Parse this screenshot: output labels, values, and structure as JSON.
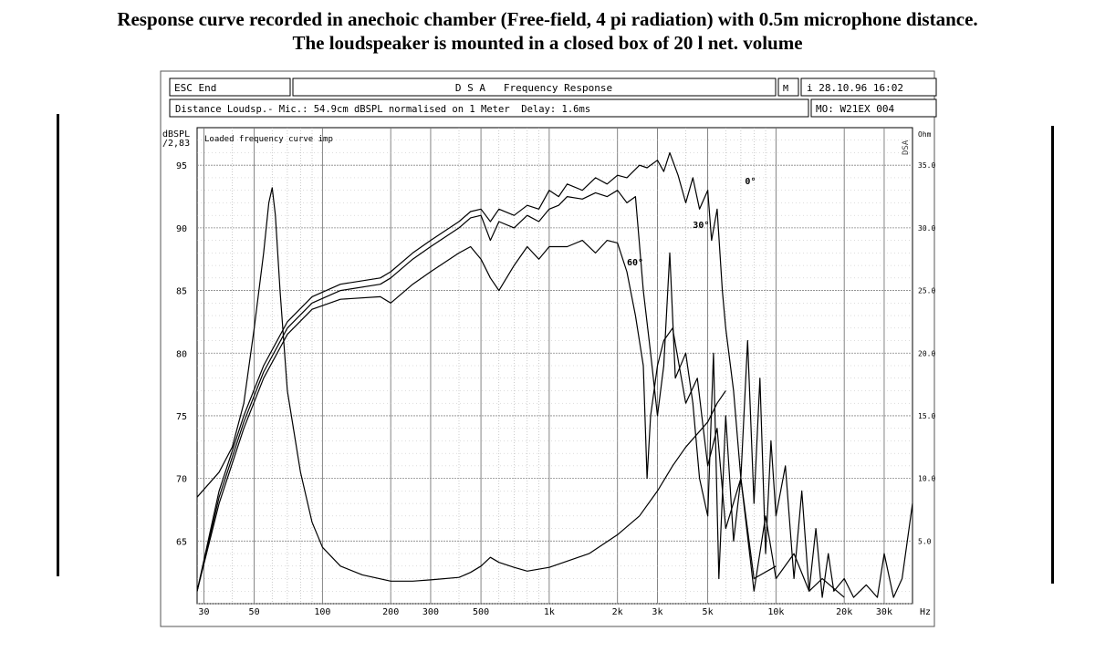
{
  "caption": {
    "line1": "Response curve recorded in anechoic chamber (Free-field, 4 pi radiation) with 0.5m microphone distance.",
    "line2": "The loudspeaker is mounted in a closed box of 20 l net. volume"
  },
  "header": {
    "esc_label": "ESC End",
    "title": "D S A   Frequency Response",
    "mac_label": "M",
    "datetime": "i 28.10.96 16:02",
    "info": "Distance Loudsp.- Mic.: 54.9cm dBSPL normalised on 1 Meter  Delay: 1.6ms",
    "model": "MO: W21EX 004"
  },
  "chart_data": {
    "type": "line",
    "title": "",
    "ylabel_line1": "dBSPL",
    "ylabel_line2": "/2,83",
    "y2label": "Ohm",
    "xlabel": "Hz",
    "annotation_top": "Loaded frequency curve imp",
    "side_mark": "DSA",
    "x_scale": "log",
    "xlim": [
      28,
      40000
    ],
    "ylim": [
      60,
      98
    ],
    "y2lim": [
      0,
      38
    ],
    "grid": true,
    "x_ticks": [
      30,
      50,
      100,
      200,
      300,
      500,
      1000,
      2000,
      3000,
      5000,
      10000,
      20000,
      30000
    ],
    "x_tick_labels": [
      "30",
      "50",
      "100",
      "200",
      "300",
      "500",
      "1k",
      "2k",
      "3k",
      "5k",
      "10k",
      "20k",
      "30k"
    ],
    "y_ticks": [
      65,
      70,
      75,
      80,
      85,
      90,
      95
    ],
    "y_tick_labels": [
      "65",
      "70",
      "75",
      "80",
      "85",
      "90",
      "95"
    ],
    "y2_ticks": [
      5,
      10,
      15,
      20,
      25,
      30,
      35
    ],
    "y2_tick_labels": [
      "5.0",
      "10.0",
      "15.0",
      "20.0",
      "25.0",
      "30.0",
      "35.0"
    ],
    "series": [
      {
        "name": "0°",
        "axis": "left",
        "x": [
          28,
          35,
          45,
          55,
          70,
          90,
          120,
          180,
          200,
          250,
          300,
          400,
          450,
          500,
          550,
          600,
          700,
          800,
          900,
          1000,
          1100,
          1200,
          1400,
          1600,
          1800,
          2000,
          2200,
          2500,
          2700,
          3000,
          3200,
          3400,
          3700,
          4000,
          4300,
          4600,
          5000,
          5200,
          5500,
          5800,
          6000,
          6500,
          7000,
          7500,
          8000,
          8500,
          9000,
          9500,
          10000,
          11000,
          12000,
          13000,
          14000,
          15000,
          16000,
          17000,
          18000,
          20000,
          22000,
          25000,
          28000,
          30000,
          33000,
          36000,
          40000
        ],
        "y": [
          61,
          69,
          75,
          79,
          82.5,
          84.5,
          85.5,
          86,
          86.5,
          88,
          89,
          90.5,
          91.3,
          91.5,
          90.5,
          91.5,
          91,
          91.8,
          91.5,
          93,
          92.5,
          93.5,
          93,
          94,
          93.5,
          94.2,
          94,
          95,
          94.8,
          95.4,
          94.5,
          96,
          94.2,
          92,
          94,
          91.5,
          93,
          89,
          91.5,
          85,
          82,
          77,
          70,
          81,
          68,
          78,
          64,
          73,
          67,
          71,
          62,
          69,
          61,
          66,
          60.5,
          64,
          61,
          62,
          60.5,
          61.5,
          60.5,
          64,
          60.5,
          62,
          68
        ]
      },
      {
        "name": "30°",
        "axis": "left",
        "x": [
          28,
          35,
          45,
          55,
          70,
          90,
          120,
          180,
          200,
          250,
          300,
          400,
          450,
          500,
          550,
          600,
          700,
          800,
          900,
          1000,
          1100,
          1200,
          1400,
          1600,
          1800,
          2000,
          2200,
          2400,
          2600,
          2800,
          3000,
          3200,
          3400,
          3600,
          4000,
          4300,
          4600,
          5000,
          5300,
          5600,
          6000,
          6500,
          7000,
          8000,
          9000,
          10000,
          12000,
          14000,
          16000,
          20000
        ],
        "y": [
          61,
          68.5,
          74.5,
          78.5,
          82,
          84,
          85,
          85.5,
          86,
          87.5,
          88.5,
          90,
          90.8,
          91,
          89,
          90.5,
          90,
          91,
          90.5,
          91.5,
          91.8,
          92.5,
          92.3,
          92.8,
          92.5,
          93,
          92,
          92.5,
          85,
          80,
          75,
          79,
          88,
          78,
          80,
          76,
          70,
          67,
          80,
          62,
          75,
          65,
          70,
          61,
          67,
          62,
          64,
          61,
          62,
          60.5
        ]
      },
      {
        "name": "60°",
        "axis": "left",
        "x": [
          28,
          35,
          45,
          55,
          70,
          90,
          120,
          180,
          200,
          250,
          300,
          400,
          450,
          500,
          550,
          600,
          700,
          800,
          900,
          1000,
          1200,
          1400,
          1600,
          1800,
          2000,
          2200,
          2400,
          2600,
          2700,
          2800,
          3000,
          3200,
          3500,
          4000,
          4500,
          5000,
          5500,
          6000,
          7000,
          8000,
          10000
        ],
        "y": [
          61,
          68,
          74,
          78,
          81.5,
          83.5,
          84.3,
          84.5,
          84,
          85.5,
          86.5,
          88,
          88.5,
          87.5,
          86,
          85,
          87,
          88.5,
          87.5,
          88.5,
          88.5,
          89,
          88,
          89,
          88.8,
          86.5,
          83,
          79,
          70,
          75,
          79,
          81,
          82,
          76,
          78,
          71,
          74,
          66,
          70,
          62,
          63
        ]
      },
      {
        "name": "Impedance",
        "axis": "right",
        "x": [
          28,
          35,
          40,
          45,
          50,
          55,
          58,
          60,
          62,
          65,
          70,
          80,
          90,
          100,
          120,
          150,
          200,
          250,
          300,
          400,
          450,
          500,
          550,
          600,
          700,
          800,
          1000,
          1500,
          2000,
          2500,
          3000,
          3500,
          4000,
          5000,
          5500,
          6000
        ],
        "y": [
          8.5,
          10.5,
          12.5,
          16,
          22,
          28,
          32,
          33.2,
          31,
          25,
          17,
          10.5,
          6.5,
          4.5,
          3,
          2.3,
          1.8,
          1.8,
          1.9,
          2.1,
          2.5,
          3.0,
          3.7,
          3.3,
          2.9,
          2.6,
          2.9,
          4.0,
          5.5,
          7.0,
          9.0,
          11.0,
          12.5,
          14.5,
          16.0,
          17.0
        ]
      }
    ],
    "labels": [
      {
        "text": "0°",
        "x": 7300,
        "y": 93.5
      },
      {
        "text": "30°",
        "x": 4300,
        "y": 90
      },
      {
        "text": "60°",
        "x": 2200,
        "y": 87
      }
    ]
  }
}
